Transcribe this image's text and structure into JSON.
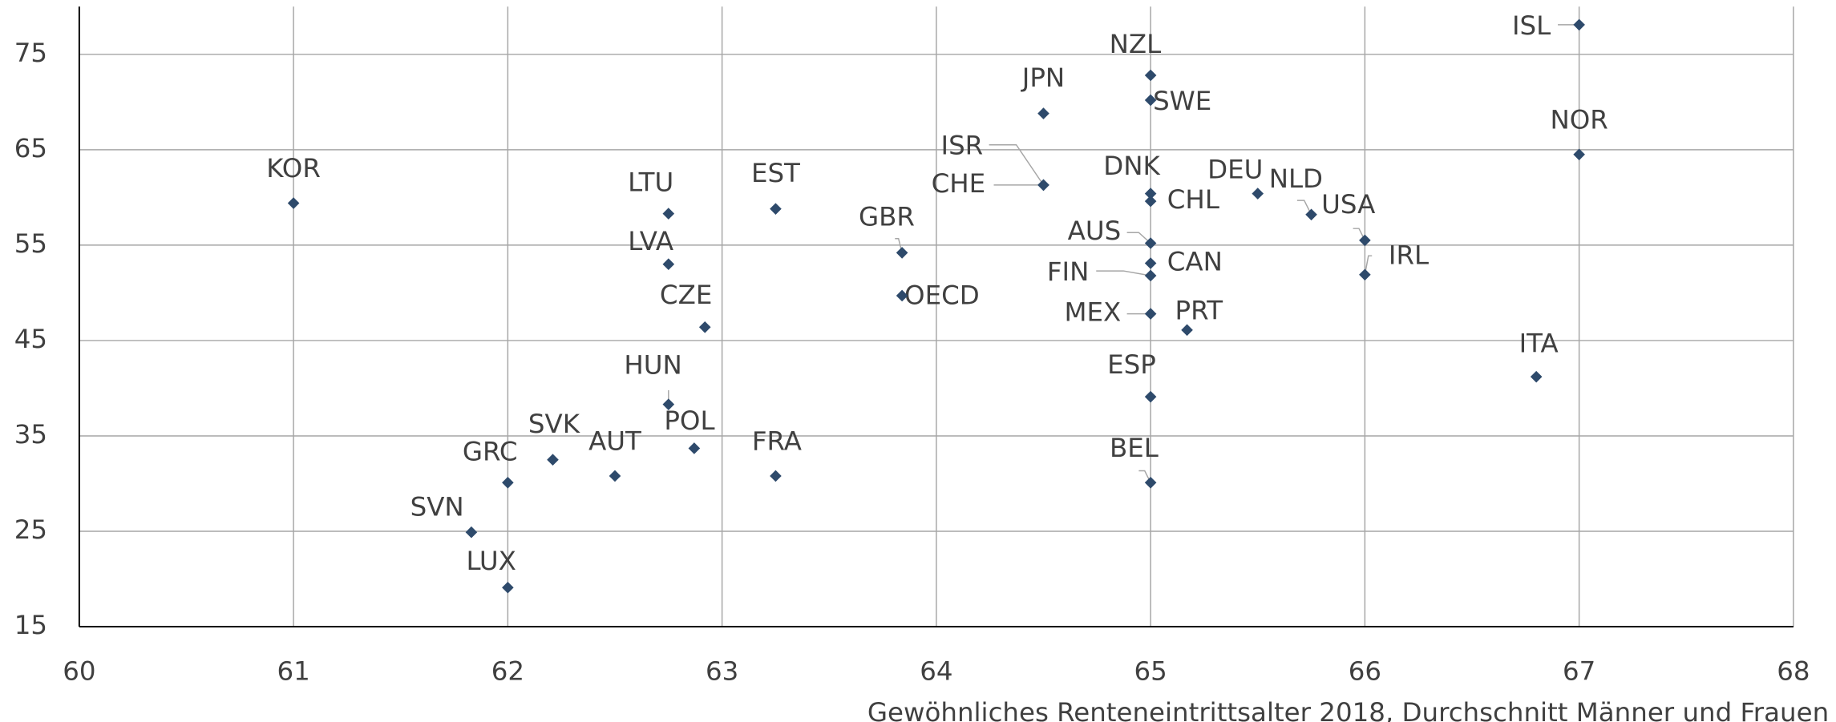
{
  "chart_data": {
    "type": "scatter",
    "x_label": "Gewöhnliches Renteneintrittsalter 2018, Durchschnitt Männer und Frauen",
    "color": "#2e4a6b",
    "xlim": [
      60,
      68
    ],
    "xticks": [
      60,
      61,
      62,
      63,
      64,
      65,
      66,
      67,
      68
    ],
    "ylim": [
      15,
      80
    ],
    "yticks": [
      15,
      25,
      35,
      45,
      55,
      65,
      75
    ],
    "grid": true,
    "points": [
      {
        "label": "KOR",
        "x": 61.0,
        "y": 59.4
      },
      {
        "label": "LTU",
        "x": 62.75,
        "y": 58.3
      },
      {
        "label": "EST",
        "x": 63.25,
        "y": 58.8
      },
      {
        "label": "GBR",
        "x": 63.84,
        "y": 54.2
      },
      {
        "label": "LVA",
        "x": 62.75,
        "y": 53.0
      },
      {
        "label": "OECD",
        "x": 63.84,
        "y": 49.7
      },
      {
        "label": "CZE",
        "x": 62.92,
        "y": 46.4
      },
      {
        "label": "HUN",
        "x": 62.75,
        "y": 38.3
      },
      {
        "label": "POL",
        "x": 62.87,
        "y": 33.7
      },
      {
        "label": "FRA",
        "x": 63.25,
        "y": 30.8
      },
      {
        "label": "AUT",
        "x": 62.5,
        "y": 30.8
      },
      {
        "label": "SVK",
        "x": 62.21,
        "y": 32.5
      },
      {
        "label": "GRC",
        "x": 62.0,
        "y": 30.1
      },
      {
        "label": "SVN",
        "x": 61.83,
        "y": 24.9
      },
      {
        "label": "LUX",
        "x": 62.0,
        "y": 19.1
      },
      {
        "label": "JPN",
        "x": 64.5,
        "y": 68.8
      },
      {
        "label": "ISR",
        "x": 64.5,
        "y": 61.3
      },
      {
        "label": "CHE",
        "x": 64.5,
        "y": 61.3
      },
      {
        "label": "NZL",
        "x": 65.0,
        "y": 72.8
      },
      {
        "label": "SWE",
        "x": 65.0,
        "y": 70.2
      },
      {
        "label": "DNK",
        "x": 65.0,
        "y": 60.4
      },
      {
        "label": "CHL",
        "x": 65.0,
        "y": 59.6
      },
      {
        "label": "AUS",
        "x": 65.0,
        "y": 55.2
      },
      {
        "label": "CAN",
        "x": 65.0,
        "y": 53.1
      },
      {
        "label": "FIN",
        "x": 65.0,
        "y": 51.8
      },
      {
        "label": "MEX",
        "x": 65.0,
        "y": 47.8
      },
      {
        "label": "PRT",
        "x": 65.17,
        "y": 46.1
      },
      {
        "label": "ESP",
        "x": 65.0,
        "y": 39.1
      },
      {
        "label": "BEL",
        "x": 65.0,
        "y": 30.1
      },
      {
        "label": "DEU",
        "x": 65.5,
        "y": 60.4
      },
      {
        "label": "NLD",
        "x": 65.75,
        "y": 58.2
      },
      {
        "label": "USA",
        "x": 66.0,
        "y": 55.5
      },
      {
        "label": "IRL",
        "x": 66.0,
        "y": 51.9
      },
      {
        "label": "ITA",
        "x": 66.8,
        "y": 41.2
      },
      {
        "label": "ISL",
        "x": 67.0,
        "y": 78.1
      },
      {
        "label": "NOR",
        "x": 67.0,
        "y": 64.5
      }
    ]
  }
}
